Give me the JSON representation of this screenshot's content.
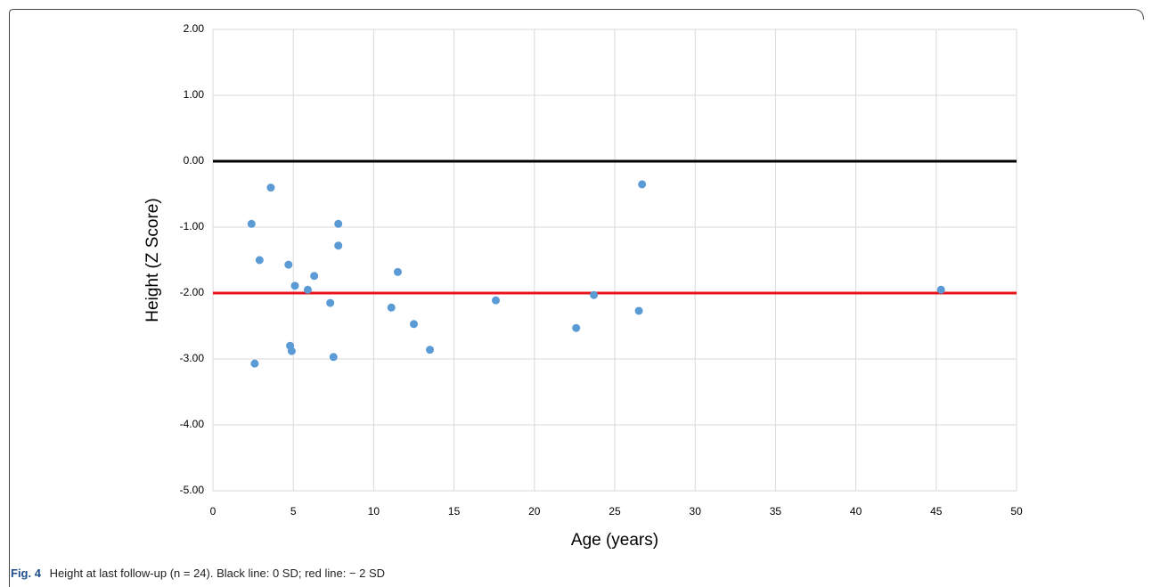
{
  "chart_data": {
    "type": "scatter",
    "xlabel": "Age (years)",
    "ylabel": "Height (Z Score)",
    "xlim": [
      0,
      50
    ],
    "xticks": [
      0,
      5,
      10,
      15,
      20,
      25,
      30,
      35,
      40,
      45,
      50
    ],
    "ylim": [
      -5,
      2
    ],
    "yticks": [
      {
        "value": -5,
        "label": "-5.00"
      },
      {
        "value": -4,
        "label": "-4.00"
      },
      {
        "value": -3,
        "label": "-3.00"
      },
      {
        "value": -2,
        "label": "-2.00"
      },
      {
        "value": -1,
        "label": "-1.00"
      },
      {
        "value": 0,
        "label": "0.00"
      },
      {
        "value": 1,
        "label": "1.00"
      },
      {
        "value": 2,
        "label": "2.00"
      }
    ],
    "grid": true,
    "color": "#5b9bd5",
    "x": [
      2.4,
      2.9,
      3.6,
      2.6,
      4.9,
      4.7,
      5.1,
      4.8,
      5.9,
      6.3,
      7.3,
      7.5,
      7.8,
      7.8,
      11.1,
      11.5,
      12.5,
      13.5,
      17.6,
      22.6,
      23.7,
      26.5,
      26.7,
      45.3
    ],
    "values": [
      -0.95,
      -1.5,
      -0.4,
      -3.07,
      -2.88,
      -1.57,
      -1.89,
      -2.8,
      -1.95,
      -1.74,
      -2.15,
      -2.97,
      -0.95,
      -1.28,
      -2.22,
      -1.68,
      -2.47,
      -2.86,
      -2.11,
      -2.53,
      -2.03,
      -2.27,
      -0.35,
      -1.95
    ],
    "reference_lines": [
      {
        "value": 0,
        "color": "#000000"
      },
      {
        "value": -2,
        "color": "#e8141b"
      }
    ]
  },
  "caption": {
    "label": "Fig. 4",
    "text": "Height at last follow-up (n = 24). Black line: 0 SD; red line: − 2 SD"
  }
}
